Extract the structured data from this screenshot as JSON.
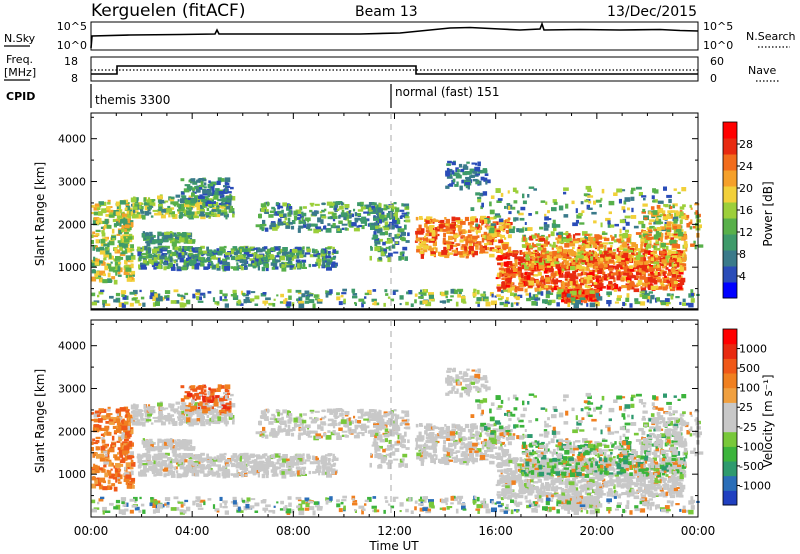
{
  "header": {
    "station": "Kerguelen (fitACF)",
    "beam": "Beam 13",
    "date": "13/Dec/2015"
  },
  "scan_panels": {
    "noise": {
      "left_label": "N.Sky",
      "right_label": "N.Search",
      "left_ticks": [
        "10^5",
        "10^0"
      ],
      "right_ticks": [
        "10^5",
        "10^0"
      ]
    },
    "freq": {
      "left_label_1": "Freq.",
      "left_label_2": "[MHz]",
      "right_label": "Nave",
      "left_ticks": [
        "18",
        "8"
      ],
      "right_ticks": [
        "60",
        "0"
      ]
    },
    "cpid": {
      "label": "CPID",
      "mode_1": "themis 3300",
      "mode_2": "normal (fast) 151"
    }
  },
  "chart_data": [
    {
      "type": "heatmap",
      "name": "power",
      "ylabel": "Slant Range [km]",
      "yticks": [
        "4000",
        "3000",
        "2000",
        "1000"
      ],
      "colorbar_label": "Power [dB]",
      "colorbar_ticks": [
        "28",
        "24",
        "20",
        "16",
        "12",
        "8",
        "4"
      ],
      "colorbar_colors": [
        "#0000ff",
        "#2a4cb8",
        "#3a7a8a",
        "#3e9a6a",
        "#58b04a",
        "#9ccf3a",
        "#f2d03a",
        "#f5a02a",
        "#f26c1c",
        "#e82a10",
        "#ff0000"
      ]
    },
    {
      "type": "heatmap",
      "name": "velocity",
      "ylabel": "Slant Range [km]",
      "yticks": [
        "4000",
        "3000",
        "2000",
        "1000"
      ],
      "colorbar_label": "Velocity [m s⁻¹]",
      "colorbar_ticks": [
        "1000",
        "500",
        "100",
        "25",
        "-25",
        "-100",
        "-500",
        "-1000"
      ],
      "colorbar_colors": [
        "#2040c0",
        "#2a6eb8",
        "#2e9a6e",
        "#3cb43c",
        "#78c83a",
        "#c8c8c8",
        "#c8c8c8",
        "#f0a040",
        "#f08020",
        "#f05818",
        "#e82a10",
        "#ff0000"
      ]
    }
  ],
  "x_axis": {
    "label": "Time UT",
    "ticks": [
      "00:00",
      "04:00",
      "08:00",
      "12:00",
      "16:00",
      "20:00",
      "00:00"
    ]
  }
}
